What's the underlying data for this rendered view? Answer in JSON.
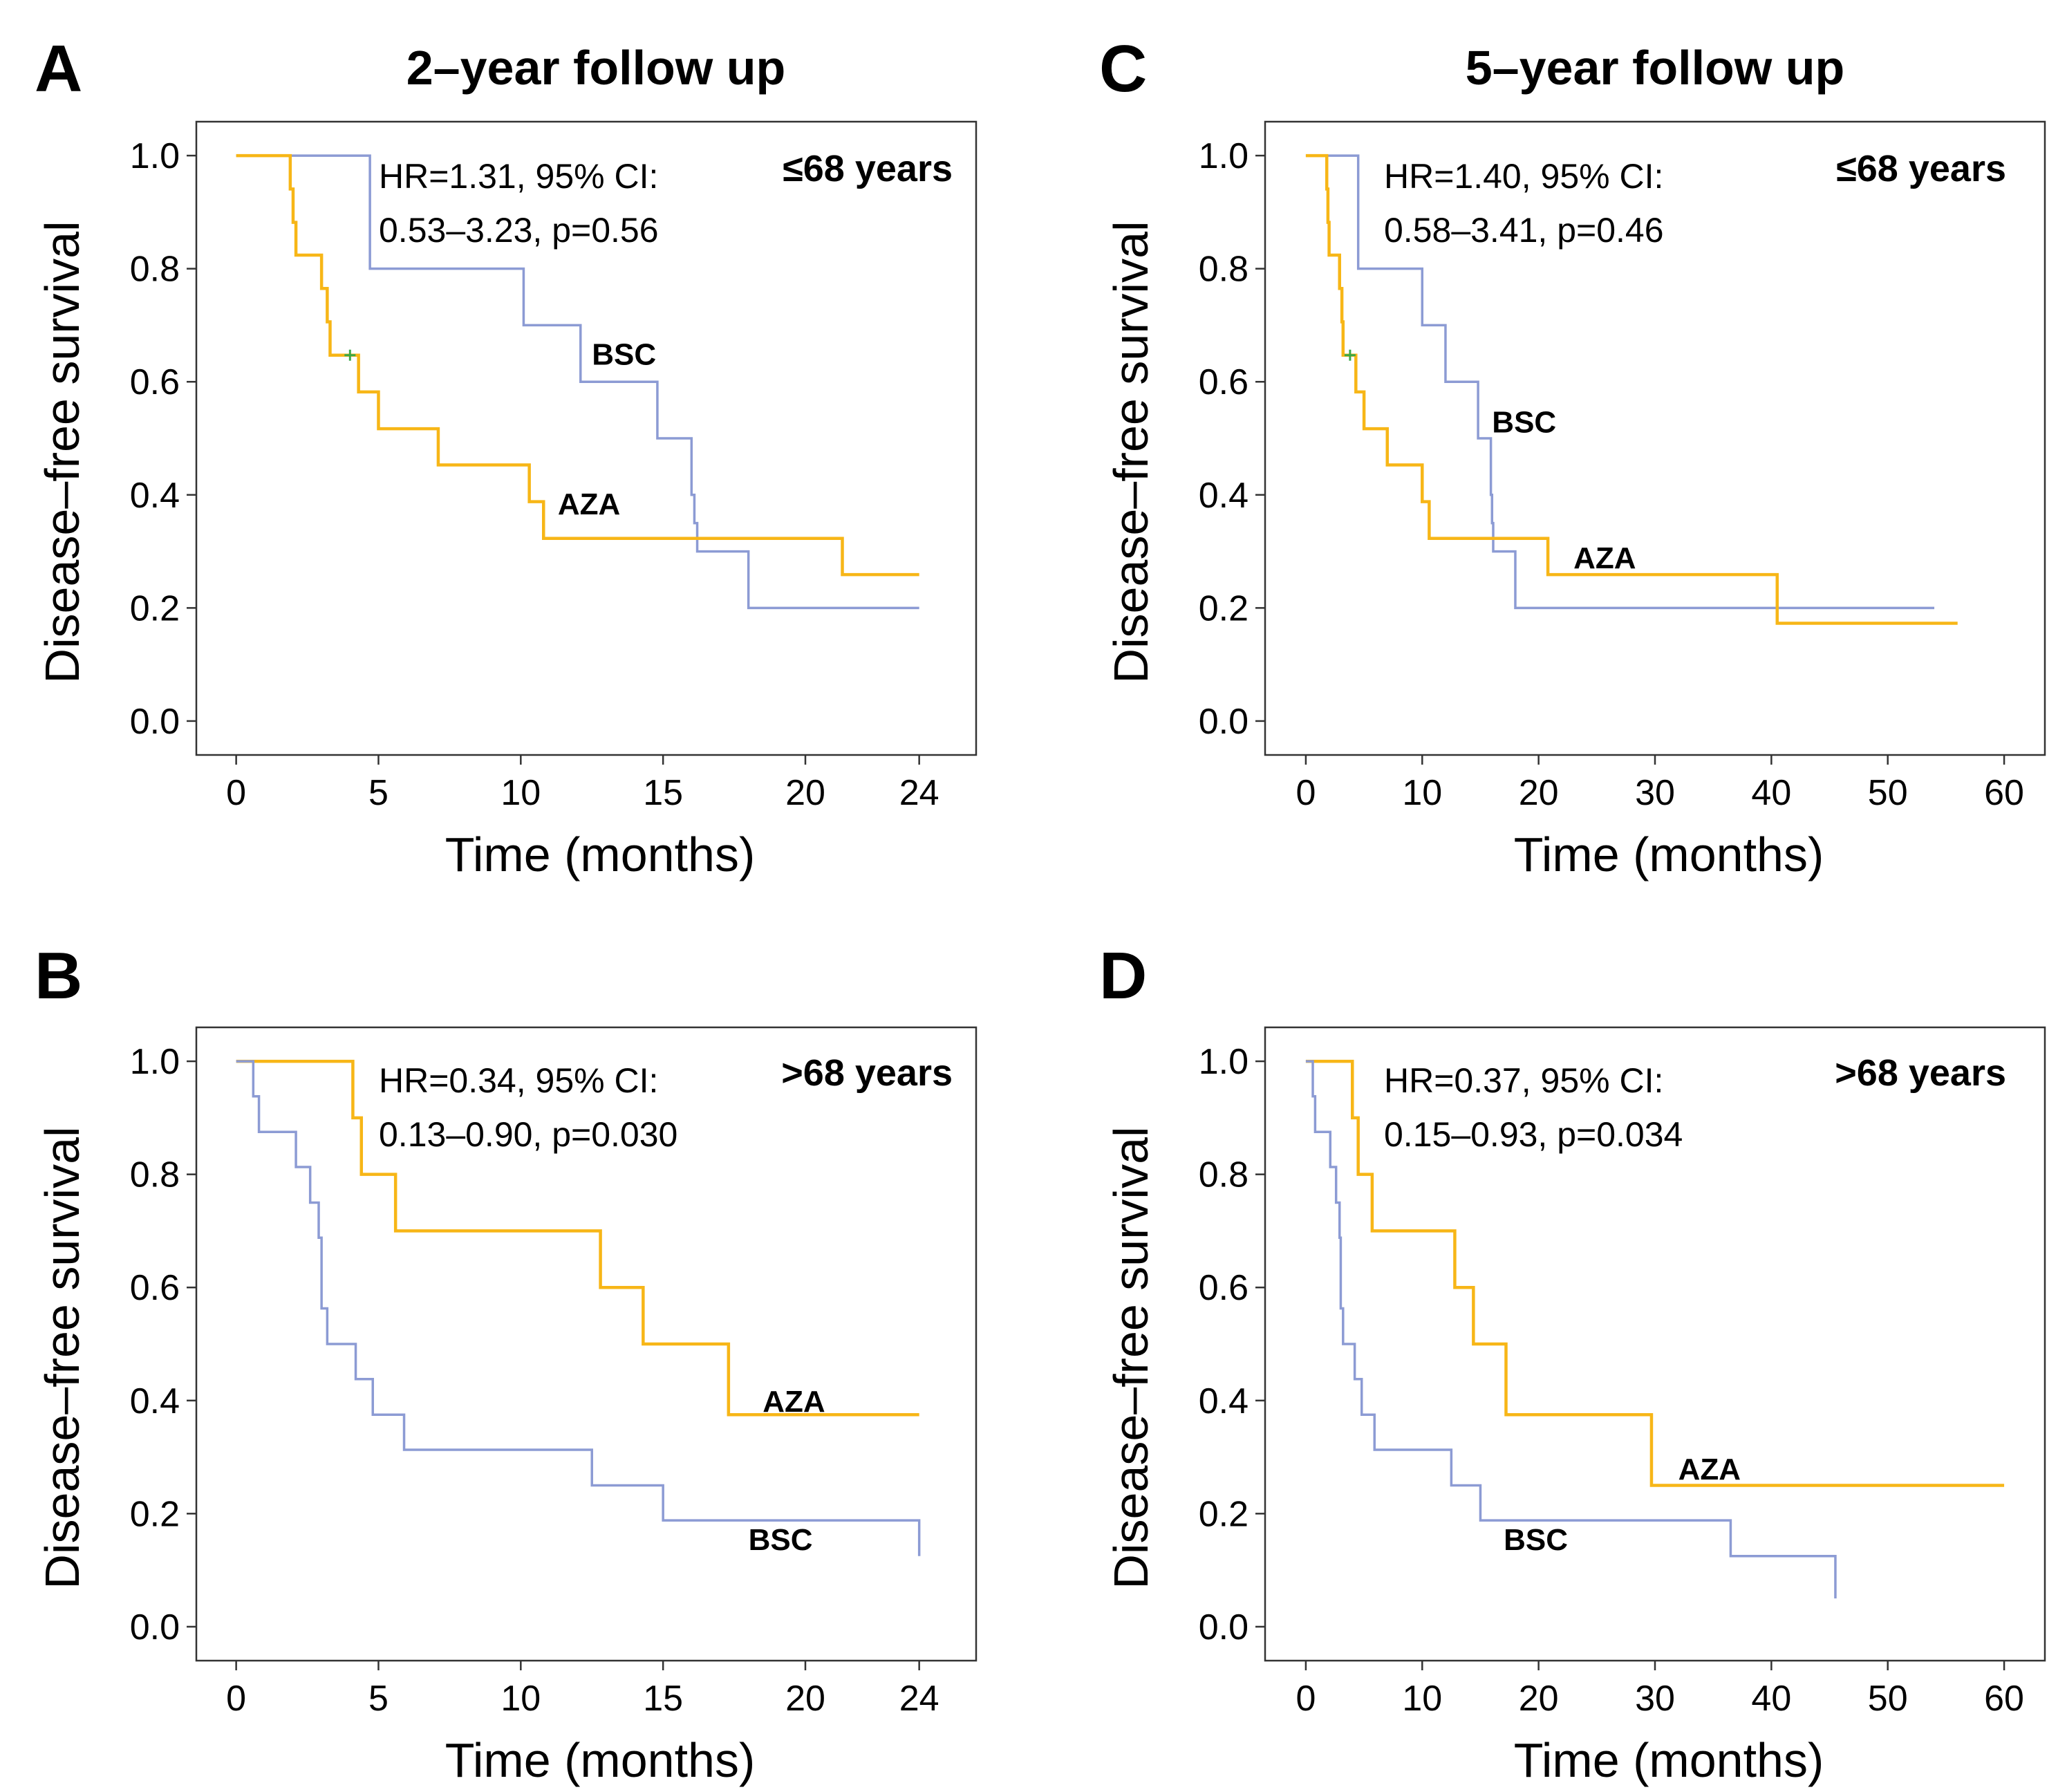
{
  "colors": {
    "AZA": "#f7b617",
    "BSC": "#8c9bd4",
    "censor": "#3aa84a",
    "frame": "#333333"
  },
  "column_titles": [
    "2–year follow up",
    "5–year follow up"
  ],
  "chart_data": [
    {
      "id": "A",
      "type": "line",
      "subtype": "kaplan-meier",
      "panel_letter": "A",
      "title": "2–year follow up",
      "age_group": "≤68 years",
      "annotation": [
        "HR=1.31, 95% CI:",
        "0.53–3.23, p=0.56"
      ],
      "xlabel": "Time (months)",
      "ylabel": "Disease–free survival",
      "xlim": [
        -1.4,
        26
      ],
      "ylim": [
        -0.06,
        1.06
      ],
      "xticks": [
        0,
        5,
        10,
        15,
        20,
        24
      ],
      "yticks": [
        "0.0",
        "0.2",
        "0.4",
        "0.6",
        "0.8",
        "1.0"
      ],
      "series": [
        {
          "name": "BSC",
          "label": "BSC",
          "label_at": [
            12.5,
            0.65
          ],
          "x": [
            0,
            4.7,
            10.1,
            12.1,
            14.8,
            16.0,
            16.1,
            16.2,
            18.0,
            24.0
          ],
          "y": [
            1.0,
            0.8,
            0.7,
            0.6,
            0.5,
            0.4,
            0.35,
            0.3,
            0.2,
            0.2
          ]
        },
        {
          "name": "AZA",
          "label": "AZA",
          "label_at": [
            11.3,
            0.385
          ],
          "x": [
            0,
            1.9,
            2.0,
            2.1,
            3.0,
            3.2,
            3.3,
            4.1,
            4.3,
            5.0,
            7.1,
            10.3,
            10.8,
            21.3,
            24.0
          ],
          "y": [
            1.0,
            0.941,
            0.882,
            0.824,
            0.765,
            0.706,
            0.647,
            0.647,
            0.582,
            0.517,
            0.453,
            0.388,
            0.323,
            0.259,
            0.259
          ],
          "censored": [
            [
              4.0,
              0.647
            ]
          ]
        }
      ]
    },
    {
      "id": "B",
      "type": "line",
      "subtype": "kaplan-meier",
      "panel_letter": "B",
      "title": "",
      "age_group": ">68 years",
      "annotation": [
        "HR=0.34, 95% CI:",
        "0.13–0.90, p=0.030"
      ],
      "xlabel": "Time (months)",
      "ylabel": "Disease–free survival",
      "xlim": [
        -1.4,
        26
      ],
      "ylim": [
        -0.06,
        1.06
      ],
      "xticks": [
        0,
        5,
        10,
        15,
        20,
        24
      ],
      "yticks": [
        "0.0",
        "0.2",
        "0.4",
        "0.6",
        "0.8",
        "1.0"
      ],
      "series": [
        {
          "name": "AZA",
          "label": "AZA",
          "label_at": [
            18.5,
            0.4
          ],
          "x": [
            0,
            4.1,
            4.4,
            5.6,
            12.8,
            14.3,
            17.3,
            24.0
          ],
          "y": [
            1.0,
            0.9,
            0.8,
            0.7,
            0.6,
            0.5,
            0.375,
            0.375
          ],
          "censored": []
        },
        {
          "name": "BSC",
          "label": "BSC",
          "label_at": [
            18.0,
            0.155
          ],
          "x": [
            0,
            0.6,
            0.8,
            2.1,
            2.6,
            2.9,
            3.0,
            3.2,
            4.2,
            4.8,
            5.9,
            12.5,
            15.0,
            24.0
          ],
          "y": [
            1.0,
            0.938,
            0.875,
            0.813,
            0.75,
            0.688,
            0.563,
            0.5,
            0.438,
            0.375,
            0.313,
            0.25,
            0.188,
            0.125
          ]
        }
      ]
    },
    {
      "id": "C",
      "type": "line",
      "subtype": "kaplan-meier",
      "panel_letter": "C",
      "title": "5–year follow up",
      "age_group": "≤68 years",
      "annotation": [
        "HR=1.40, 95% CI:",
        "0.58–3.41, p=0.46"
      ],
      "xlabel": "Time (months)",
      "ylabel": "Disease–free survival",
      "xlim": [
        -3.5,
        63.5
      ],
      "ylim": [
        -0.06,
        1.06
      ],
      "xticks": [
        0,
        10,
        20,
        30,
        40,
        50,
        60
      ],
      "yticks": [
        "0.0",
        "0.2",
        "0.4",
        "0.6",
        "0.8",
        "1.0"
      ],
      "series": [
        {
          "name": "BSC",
          "label": "BSC",
          "label_at": [
            16.0,
            0.53
          ],
          "x": [
            0,
            4.5,
            10.0,
            12.0,
            14.8,
            15.9,
            16.0,
            16.1,
            18.0,
            54.0
          ],
          "y": [
            1.0,
            0.8,
            0.7,
            0.6,
            0.5,
            0.4,
            0.35,
            0.3,
            0.2,
            0.2
          ]
        },
        {
          "name": "AZA",
          "label": "AZA",
          "label_at": [
            23,
            0.29
          ],
          "x": [
            0,
            1.8,
            1.9,
            2.0,
            2.9,
            3.1,
            3.2,
            4.0,
            4.3,
            5.0,
            7.0,
            10.0,
            10.6,
            20.8,
            40.5,
            56.0
          ],
          "y": [
            1.0,
            0.941,
            0.882,
            0.824,
            0.765,
            0.706,
            0.647,
            0.647,
            0.582,
            0.517,
            0.453,
            0.388,
            0.323,
            0.259,
            0.173,
            0.173
          ],
          "censored": [
            [
              3.8,
              0.647
            ]
          ]
        }
      ]
    },
    {
      "id": "D",
      "type": "line",
      "subtype": "kaplan-meier",
      "panel_letter": "D",
      "title": "",
      "age_group": ">68 years",
      "annotation": [
        "HR=0.37, 95% CI:",
        "0.15–0.93, p=0.034"
      ],
      "xlabel": "Time (months)",
      "ylabel": "Disease–free survival",
      "xlim": [
        -3.5,
        63.5
      ],
      "ylim": [
        -0.06,
        1.06
      ],
      "xticks": [
        0,
        10,
        20,
        30,
        40,
        50,
        60
      ],
      "yticks": [
        "0.0",
        "0.2",
        "0.4",
        "0.6",
        "0.8",
        "1.0"
      ],
      "series": [
        {
          "name": "AZA",
          "label": "AZA",
          "label_at": [
            32,
            0.28
          ],
          "x": [
            0,
            4.0,
            4.5,
            5.7,
            12.8,
            14.4,
            17.2,
            29.7,
            60.0
          ],
          "y": [
            1.0,
            0.9,
            0.8,
            0.7,
            0.6,
            0.5,
            0.375,
            0.25,
            0.25
          ],
          "censored": []
        },
        {
          "name": "BSC",
          "label": "BSC",
          "label_at": [
            17,
            0.155
          ],
          "x": [
            0,
            0.6,
            0.8,
            2.1,
            2.6,
            2.9,
            3.0,
            3.2,
            4.2,
            4.8,
            5.9,
            12.5,
            15.0,
            36.5,
            45.5
          ],
          "y": [
            1.0,
            0.938,
            0.875,
            0.813,
            0.75,
            0.688,
            0.563,
            0.5,
            0.438,
            0.375,
            0.313,
            0.25,
            0.188,
            0.125,
            0.05
          ]
        }
      ]
    }
  ]
}
